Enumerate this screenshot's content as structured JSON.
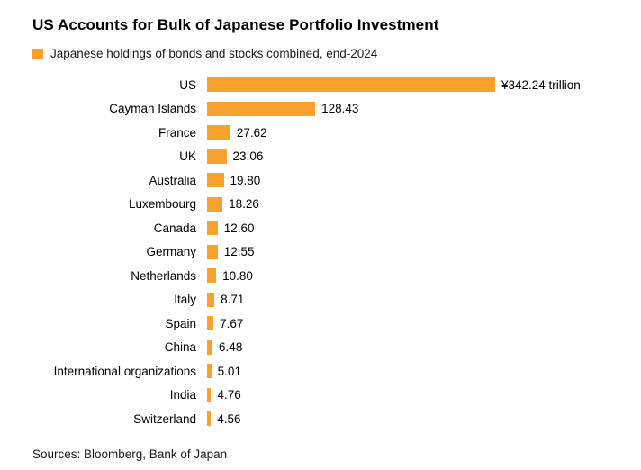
{
  "accent_color": "#F8A12C",
  "header": {
    "title": "US Accounts for Bulk of Japanese Portfolio Investment"
  },
  "legend": {
    "label": "Japanese holdings of bonds and stocks combined, end-2024"
  },
  "footer": {
    "source": "Sources: Bloomberg, Bank of Japan"
  },
  "chart_data": {
    "type": "bar",
    "orientation": "horizontal",
    "title": "US Accounts for Bulk of Japanese Portfolio Investment",
    "legend": [
      "Japanese holdings of bonds and stocks combined, end-2024"
    ],
    "legend_position": "top-left",
    "grid": false,
    "xlim": [
      0,
      342.24
    ],
    "categories": [
      "US",
      "Cayman Islands",
      "France",
      "UK",
      "Australia",
      "Luxembourg",
      "Canada",
      "Germany",
      "Netherlands",
      "Italy",
      "Spain",
      "China",
      "International organizations",
      "India",
      "Switzerland"
    ],
    "values": [
      342.24,
      128.43,
      27.62,
      23.06,
      19.8,
      18.26,
      12.6,
      12.55,
      10.8,
      8.71,
      7.67,
      6.48,
      5.01,
      4.76,
      4.56
    ],
    "value_labels": [
      "¥342.24 trillion",
      "128.43",
      "27.62",
      "23.06",
      "19.80",
      "18.26",
      "12.60",
      "12.55",
      "10.80",
      "8.71",
      "7.67",
      "6.48",
      "5.01",
      "4.76",
      "4.56"
    ]
  }
}
